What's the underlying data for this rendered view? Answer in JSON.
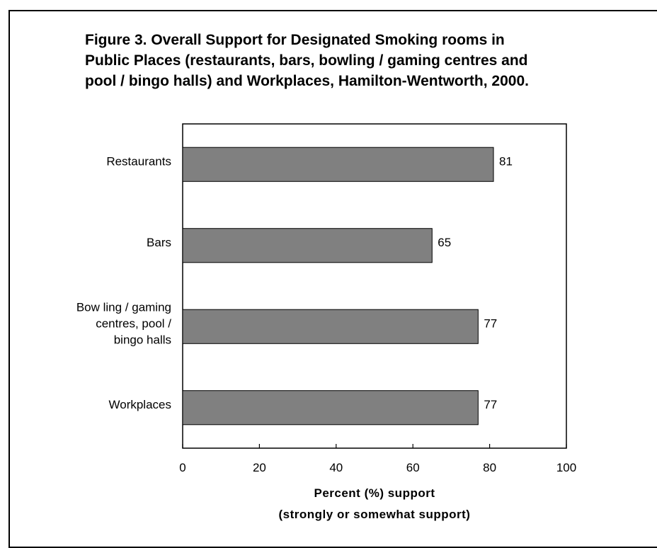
{
  "title_lines": [
    "Figure 3. Overall Support for Designated Smoking rooms in",
    "Public Places (restaurants, bars, bowling / gaming centres and",
    "pool / bingo halls) and Workplaces, Hamilton-Wentworth, 2000."
  ],
  "chart_data": {
    "type": "bar",
    "orientation": "horizontal",
    "title": "Figure 3. Overall Support for Designated Smoking rooms in Public Places (restaurants, bars, bowling / gaming centres and pool / bingo halls) and Workplaces, Hamilton-Wentworth, 2000.",
    "categories": [
      [
        "Restaurants"
      ],
      [
        "Bars"
      ],
      [
        "Bow ling / gaming",
        "centres, pool /",
        "bingo halls"
      ],
      [
        "Workplaces"
      ]
    ],
    "values": [
      81,
      65,
      77,
      77
    ],
    "data_labels": [
      "81",
      "65",
      "77",
      "77"
    ],
    "xlim": [
      0,
      100
    ],
    "xticks": [
      0,
      20,
      40,
      60,
      80,
      100
    ],
    "xlabel_lines": [
      "Percent (%) support",
      "(strongly or somewhat support)"
    ],
    "ylabel": "",
    "bar_color": "#808080",
    "grid": false,
    "legend": "none"
  }
}
